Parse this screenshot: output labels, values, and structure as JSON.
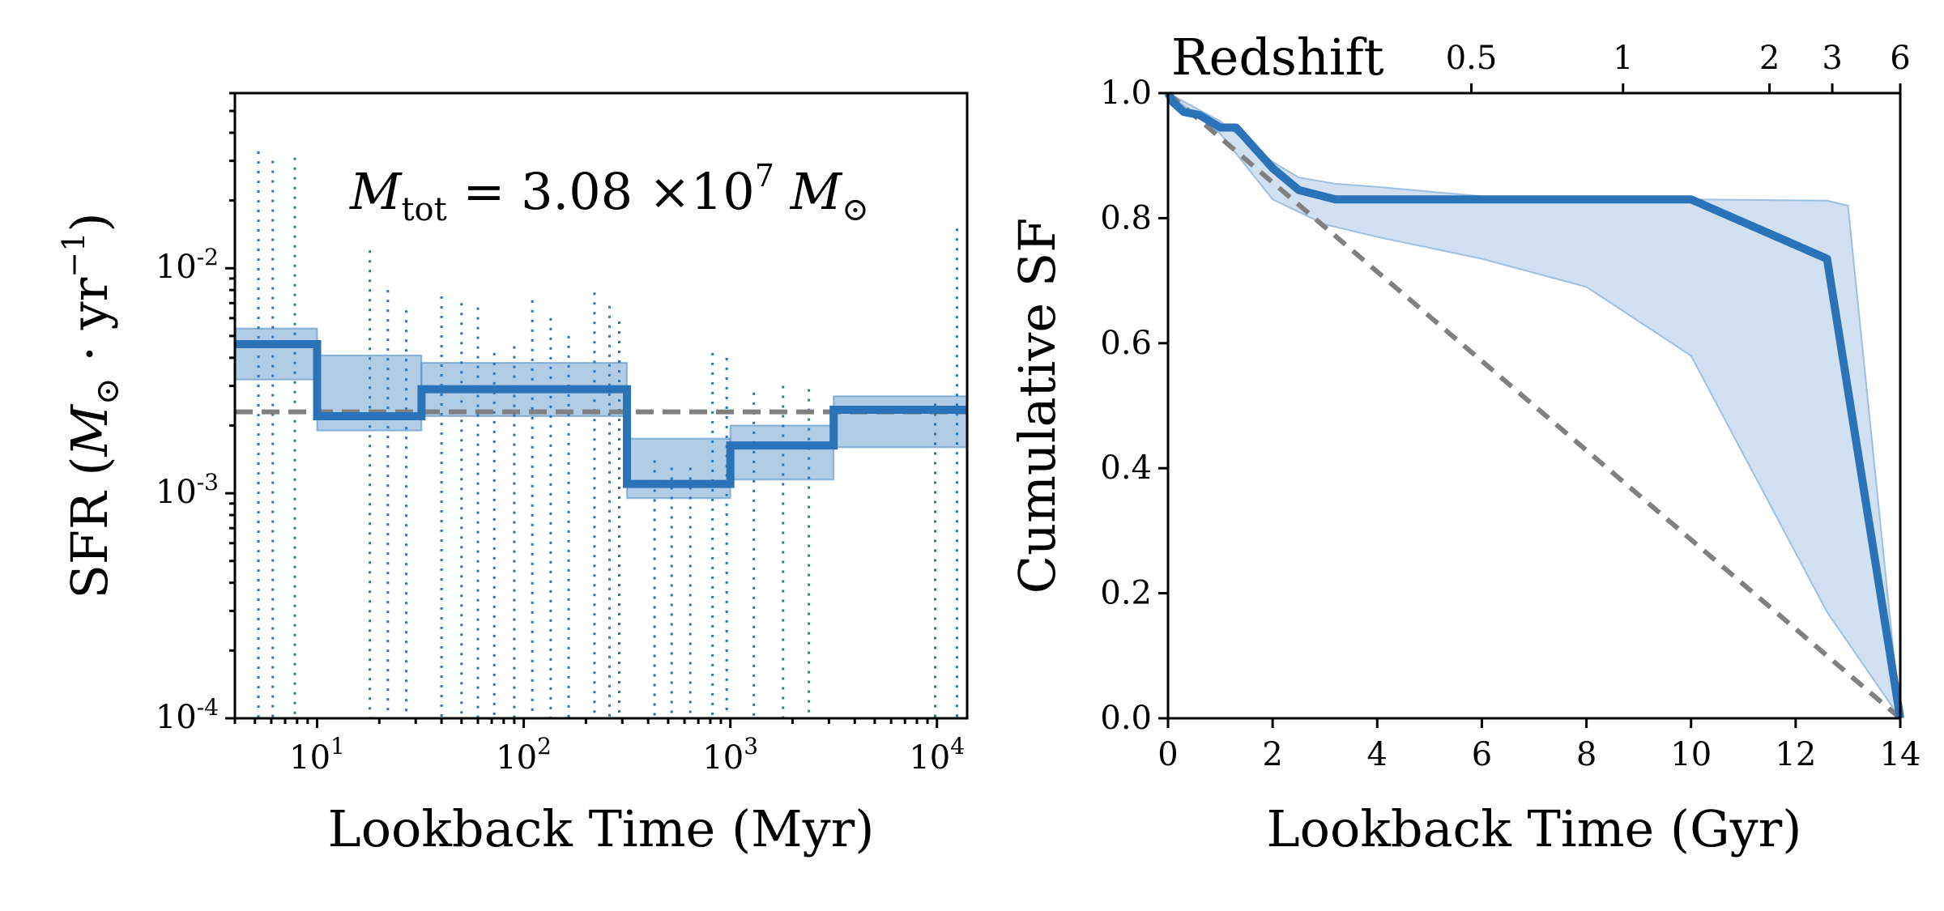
{
  "colors": {
    "main": "#2a73b8",
    "band": "#9dbfe0",
    "band_right": "#c6d9ee",
    "reference": "#808080",
    "axis": "#000000"
  },
  "chart_data": [
    {
      "type": "line",
      "xscale": "log",
      "yscale": "log",
      "xlabel": "Lookback Time (Myr)",
      "ylabel": "SFR (M⊙ · yr⁻¹)",
      "ylabel_parts": {
        "pre": "SFR (",
        "m": "M",
        "sub": "⊙",
        "mid": " · yr",
        "sup": "−1",
        "post": ")"
      },
      "xlim": [
        4,
        14000
      ],
      "ylim": [
        0.0001,
        0.06
      ],
      "x_ticks": [
        {
          "value": 10,
          "base": "10",
          "exp": "1"
        },
        {
          "value": 100,
          "base": "10",
          "exp": "2"
        },
        {
          "value": 1000,
          "base": "10",
          "exp": "3"
        },
        {
          "value": 10000,
          "base": "10",
          "exp": "4"
        }
      ],
      "y_ticks": [
        {
          "value": 0.0001,
          "base": "10",
          "exp": "-4"
        },
        {
          "value": 0.001,
          "base": "10",
          "exp": "-3"
        },
        {
          "value": 0.01,
          "base": "10",
          "exp": "-2"
        }
      ],
      "annotation": {
        "m": "M",
        "sub": "tot",
        "eq": " = 3.08 ×10",
        "exp": "7",
        "unit": " M",
        "unit_sub": "⊙"
      },
      "reference_level": 0.0023,
      "bin_edges": [
        4,
        10,
        32,
        316,
        1000,
        3162,
        14000
      ],
      "sfr": [
        0.0046,
        0.0022,
        0.0029,
        0.0011,
        0.00163,
        0.00235
      ],
      "sfr_lower": [
        0.0032,
        0.0019,
        0.0022,
        0.00095,
        0.00115,
        0.0016
      ],
      "sfr_upper": [
        0.0054,
        0.0041,
        0.0038,
        0.00175,
        0.002,
        0.0027
      ],
      "draws": [
        [
          5.2,
          0.033
        ],
        [
          6.1,
          0.03
        ],
        [
          7.8,
          0.031
        ],
        [
          18,
          0.012
        ],
        [
          22,
          0.008
        ],
        [
          27,
          0.0065
        ],
        [
          40,
          0.0075
        ],
        [
          50,
          0.007
        ],
        [
          60,
          0.0067
        ],
        [
          72,
          0.0042
        ],
        [
          90,
          0.0045
        ],
        [
          110,
          0.0072
        ],
        [
          135,
          0.006
        ],
        [
          165,
          0.005
        ],
        [
          220,
          0.0078
        ],
        [
          260,
          0.0068
        ],
        [
          290,
          0.0058
        ],
        [
          430,
          0.0014
        ],
        [
          520,
          0.0013
        ],
        [
          640,
          0.0013
        ],
        [
          820,
          0.0042
        ],
        [
          960,
          0.004
        ],
        [
          1300,
          0.0028
        ],
        [
          1800,
          0.003
        ],
        [
          2400,
          0.0029
        ],
        [
          9800,
          0.0025
        ],
        [
          12500,
          0.015
        ]
      ]
    },
    {
      "type": "line",
      "xlabel": "Lookback Time (Gyr)",
      "ylabel": "Cumulative SF",
      "top_axis_label": "Redshift",
      "xlim": [
        0,
        14
      ],
      "ylim": [
        0,
        1
      ],
      "x_ticks": [
        0,
        2,
        4,
        6,
        8,
        10,
        12,
        14
      ],
      "y_ticks": [
        "0.0",
        "0.2",
        "0.4",
        "0.6",
        "0.8",
        "1.0"
      ],
      "top_ticks": [
        {
          "label": "0.5",
          "lookback_gyr": 5.8
        },
        {
          "label": "1",
          "lookback_gyr": 8.7
        },
        {
          "label": "2",
          "lookback_gyr": 11.5
        },
        {
          "label": "3",
          "lookback_gyr": 12.7
        },
        {
          "label": "6",
          "lookback_gyr": 14.0
        }
      ],
      "median": [
        [
          0,
          1.0
        ],
        [
          0.1,
          0.985
        ],
        [
          0.3,
          0.97
        ],
        [
          0.6,
          0.965
        ],
        [
          0.8,
          0.955
        ],
        [
          1.0,
          0.945
        ],
        [
          1.3,
          0.945
        ],
        [
          2.0,
          0.88
        ],
        [
          2.5,
          0.845
        ],
        [
          3.2,
          0.83
        ],
        [
          10.0,
          0.83
        ],
        [
          12.6,
          0.735
        ],
        [
          14.0,
          0.0
        ]
      ],
      "upper": [
        [
          0,
          1.0
        ],
        [
          1.0,
          0.955
        ],
        [
          2.0,
          0.89
        ],
        [
          2.5,
          0.865
        ],
        [
          3.2,
          0.855
        ],
        [
          4.0,
          0.85
        ],
        [
          6.0,
          0.835
        ],
        [
          10.0,
          0.83
        ],
        [
          12.6,
          0.828
        ],
        [
          13.0,
          0.82
        ],
        [
          14.0,
          0.0
        ]
      ],
      "lower": [
        [
          14.0,
          0.0
        ],
        [
          12.6,
          0.17
        ],
        [
          10.0,
          0.58
        ],
        [
          8.0,
          0.69
        ],
        [
          6.0,
          0.735
        ],
        [
          4.0,
          0.77
        ],
        [
          3.0,
          0.79
        ],
        [
          2.5,
          0.81
        ],
        [
          2.0,
          0.83
        ],
        [
          1.0,
          0.935
        ],
        [
          0,
          1.0
        ]
      ],
      "reference": [
        [
          0,
          1.0
        ],
        [
          14.0,
          0.0
        ]
      ]
    }
  ]
}
